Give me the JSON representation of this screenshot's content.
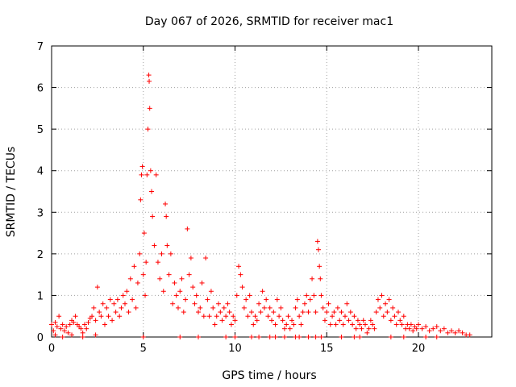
{
  "chart_data": {
    "type": "scatter",
    "title": "Day 067 of 2026, SRMTID for receiver mac1",
    "xlabel": "GPS time / hours",
    "ylabel": "SRMTID / TECUs",
    "xlim": [
      0,
      24
    ],
    "ylim": [
      0,
      7
    ],
    "x_ticks": [
      0,
      5,
      10,
      15,
      20
    ],
    "x_tick_labels": [
      "0",
      "5",
      "10",
      "15",
      "20"
    ],
    "y_ticks": [
      0,
      1,
      2,
      3,
      4,
      5,
      6,
      7
    ],
    "y_tick_labels": [
      "0",
      "1",
      "2",
      "3",
      "4",
      "5",
      "6",
      "7"
    ],
    "grid": true,
    "marker": "+",
    "color": "#ff0000",
    "series": [
      {
        "name": "SRMTID",
        "points": [
          [
            0.0,
            0.3
          ],
          [
            0.1,
            0.15
          ],
          [
            0.2,
            0.35
          ],
          [
            0.3,
            0.25
          ],
          [
            0.4,
            0.5
          ],
          [
            0.5,
            0.2
          ],
          [
            0.6,
            0.3
          ],
          [
            0.7,
            0.15
          ],
          [
            0.8,
            0.25
          ],
          [
            0.9,
            0.1
          ],
          [
            1.0,
            0.3
          ],
          [
            1.1,
            0.4
          ],
          [
            1.2,
            0.35
          ],
          [
            1.3,
            0.5
          ],
          [
            1.4,
            0.3
          ],
          [
            1.5,
            0.25
          ],
          [
            1.6,
            0.2
          ],
          [
            1.7,
            0.1
          ],
          [
            1.8,
            0.3
          ],
          [
            1.9,
            0.2
          ],
          [
            2.0,
            0.35
          ],
          [
            2.1,
            0.45
          ],
          [
            2.2,
            0.5
          ],
          [
            2.3,
            0.7
          ],
          [
            2.4,
            0.4
          ],
          [
            2.5,
            1.2
          ],
          [
            2.6,
            0.6
          ],
          [
            2.7,
            0.5
          ],
          [
            2.8,
            0.8
          ],
          [
            2.9,
            0.3
          ],
          [
            3.0,
            0.7
          ],
          [
            3.1,
            0.5
          ],
          [
            3.2,
            0.9
          ],
          [
            3.3,
            0.4
          ],
          [
            3.4,
            0.8
          ],
          [
            3.5,
            0.6
          ],
          [
            3.6,
            0.9
          ],
          [
            3.7,
            0.5
          ],
          [
            3.8,
            0.7
          ],
          [
            3.9,
            1.0
          ],
          [
            4.0,
            0.8
          ],
          [
            4.1,
            1.1
          ],
          [
            4.2,
            0.6
          ],
          [
            4.3,
            1.4
          ],
          [
            4.4,
            0.9
          ],
          [
            4.5,
            1.7
          ],
          [
            4.6,
            0.7
          ],
          [
            4.7,
            1.3
          ],
          [
            4.8,
            2.0
          ],
          [
            4.85,
            3.3
          ],
          [
            4.9,
            3.9
          ],
          [
            4.95,
            4.1
          ],
          [
            5.0,
            1.5
          ],
          [
            5.05,
            2.5
          ],
          [
            5.1,
            1.0
          ],
          [
            5.15,
            1.8
          ],
          [
            5.2,
            3.9
          ],
          [
            5.25,
            5.0
          ],
          [
            5.3,
            6.3
          ],
          [
            5.32,
            6.15
          ],
          [
            5.35,
            5.5
          ],
          [
            5.4,
            4.0
          ],
          [
            5.45,
            3.5
          ],
          [
            5.5,
            2.9
          ],
          [
            5.6,
            2.2
          ],
          [
            5.7,
            3.9
          ],
          [
            5.8,
            1.8
          ],
          [
            5.9,
            1.4
          ],
          [
            6.0,
            2.0
          ],
          [
            6.1,
            1.1
          ],
          [
            6.2,
            3.2
          ],
          [
            6.25,
            2.9
          ],
          [
            6.3,
            2.2
          ],
          [
            6.4,
            1.5
          ],
          [
            6.5,
            2.0
          ],
          [
            6.6,
            0.8
          ],
          [
            6.7,
            1.3
          ],
          [
            6.8,
            1.0
          ],
          [
            6.9,
            0.7
          ],
          [
            7.0,
            1.1
          ],
          [
            7.1,
            1.4
          ],
          [
            7.2,
            0.6
          ],
          [
            7.3,
            0.9
          ],
          [
            7.4,
            2.6
          ],
          [
            7.5,
            1.5
          ],
          [
            7.6,
            1.9
          ],
          [
            7.7,
            1.2
          ],
          [
            7.8,
            0.8
          ],
          [
            7.9,
            1.0
          ],
          [
            8.0,
            0.6
          ],
          [
            8.1,
            0.7
          ],
          [
            8.2,
            1.3
          ],
          [
            8.3,
            0.5
          ],
          [
            8.4,
            1.9
          ],
          [
            8.5,
            0.9
          ],
          [
            8.6,
            0.5
          ],
          [
            8.7,
            1.1
          ],
          [
            8.8,
            0.7
          ],
          [
            8.9,
            0.3
          ],
          [
            9.0,
            0.5
          ],
          [
            9.1,
            0.8
          ],
          [
            9.2,
            0.6
          ],
          [
            9.3,
            0.4
          ],
          [
            9.4,
            0.7
          ],
          [
            9.5,
            0.5
          ],
          [
            9.6,
            0.8
          ],
          [
            9.7,
            0.6
          ],
          [
            9.8,
            0.3
          ],
          [
            9.9,
            0.5
          ],
          [
            10.0,
            0.4
          ],
          [
            10.1,
            1.0
          ],
          [
            10.2,
            1.7
          ],
          [
            10.3,
            1.5
          ],
          [
            10.4,
            1.2
          ],
          [
            10.5,
            0.7
          ],
          [
            10.6,
            0.9
          ],
          [
            10.7,
            0.5
          ],
          [
            10.8,
            1.0
          ],
          [
            10.9,
            0.6
          ],
          [
            11.0,
            0.3
          ],
          [
            11.1,
            0.5
          ],
          [
            11.2,
            0.4
          ],
          [
            11.3,
            0.8
          ],
          [
            11.4,
            0.6
          ],
          [
            11.5,
            1.1
          ],
          [
            11.6,
            0.7
          ],
          [
            11.7,
            0.9
          ],
          [
            11.8,
            0.5
          ],
          [
            11.9,
            0.7
          ],
          [
            12.0,
            0.4
          ],
          [
            12.1,
            0.6
          ],
          [
            12.2,
            0.3
          ],
          [
            12.3,
            0.9
          ],
          [
            12.4,
            0.5
          ],
          [
            12.5,
            0.7
          ],
          [
            12.6,
            0.4
          ],
          [
            12.7,
            0.2
          ],
          [
            12.8,
            0.3
          ],
          [
            12.9,
            0.5
          ],
          [
            13.0,
            0.2
          ],
          [
            13.1,
            0.4
          ],
          [
            13.2,
            0.3
          ],
          [
            13.3,
            0.7
          ],
          [
            13.4,
            0.9
          ],
          [
            13.5,
            0.5
          ],
          [
            13.6,
            0.3
          ],
          [
            13.7,
            0.6
          ],
          [
            13.8,
            0.8
          ],
          [
            13.9,
            1.0
          ],
          [
            14.0,
            0.6
          ],
          [
            14.1,
            0.9
          ],
          [
            14.2,
            1.4
          ],
          [
            14.3,
            1.0
          ],
          [
            14.4,
            0.6
          ],
          [
            14.5,
            2.3
          ],
          [
            14.55,
            2.1
          ],
          [
            14.6,
            1.7
          ],
          [
            14.65,
            1.4
          ],
          [
            14.7,
            1.0
          ],
          [
            14.8,
            0.7
          ],
          [
            14.9,
            0.4
          ],
          [
            15.0,
            0.6
          ],
          [
            15.1,
            0.8
          ],
          [
            15.2,
            0.3
          ],
          [
            15.3,
            0.5
          ],
          [
            15.4,
            0.6
          ],
          [
            15.5,
            0.3
          ],
          [
            15.6,
            0.7
          ],
          [
            15.7,
            0.4
          ],
          [
            15.8,
            0.6
          ],
          [
            15.9,
            0.3
          ],
          [
            16.0,
            0.5
          ],
          [
            16.1,
            0.8
          ],
          [
            16.2,
            0.4
          ],
          [
            16.3,
            0.6
          ],
          [
            16.4,
            0.3
          ],
          [
            16.5,
            0.5
          ],
          [
            16.6,
            0.2
          ],
          [
            16.7,
            0.4
          ],
          [
            16.8,
            0.3
          ],
          [
            16.9,
            0.2
          ],
          [
            17.0,
            0.4
          ],
          [
            17.1,
            0.3
          ],
          [
            17.2,
            0.1
          ],
          [
            17.3,
            0.2
          ],
          [
            17.4,
            0.4
          ],
          [
            17.5,
            0.3
          ],
          [
            17.6,
            0.2
          ],
          [
            17.7,
            0.6
          ],
          [
            17.8,
            0.9
          ],
          [
            17.9,
            0.7
          ],
          [
            18.0,
            1.0
          ],
          [
            18.1,
            0.5
          ],
          [
            18.2,
            0.8
          ],
          [
            18.3,
            0.6
          ],
          [
            18.4,
            0.9
          ],
          [
            18.5,
            0.4
          ],
          [
            18.6,
            0.7
          ],
          [
            18.7,
            0.5
          ],
          [
            18.8,
            0.3
          ],
          [
            18.9,
            0.6
          ],
          [
            19.0,
            0.4
          ],
          [
            19.1,
            0.3
          ],
          [
            19.2,
            0.5
          ],
          [
            19.3,
            0.2
          ],
          [
            19.4,
            0.3
          ],
          [
            19.5,
            0.2
          ],
          [
            19.6,
            0.3
          ],
          [
            19.7,
            0.15
          ],
          [
            19.8,
            0.25
          ],
          [
            19.9,
            0.2
          ],
          [
            20.0,
            0.3
          ],
          [
            20.2,
            0.2
          ],
          [
            20.4,
            0.25
          ],
          [
            20.6,
            0.15
          ],
          [
            20.8,
            0.2
          ],
          [
            21.0,
            0.25
          ],
          [
            21.2,
            0.15
          ],
          [
            21.4,
            0.2
          ],
          [
            21.6,
            0.1
          ],
          [
            21.8,
            0.15
          ],
          [
            22.0,
            0.1
          ],
          [
            22.2,
            0.15
          ],
          [
            22.4,
            0.1
          ],
          [
            22.6,
            0.05
          ],
          [
            22.8,
            0.05
          ],
          [
            0.2,
            0.05
          ],
          [
            0.6,
            0.0
          ],
          [
            1.1,
            0.05
          ],
          [
            1.7,
            0.0
          ],
          [
            2.4,
            0.05
          ],
          [
            5.0,
            0.0
          ],
          [
            7.0,
            0.0
          ],
          [
            8.0,
            0.0
          ],
          [
            9.5,
            0.0
          ],
          [
            10.0,
            0.0
          ],
          [
            10.9,
            0.0
          ],
          [
            11.3,
            0.0
          ],
          [
            11.9,
            0.0
          ],
          [
            12.2,
            0.0
          ],
          [
            12.7,
            0.0
          ],
          [
            13.3,
            0.0
          ],
          [
            13.5,
            0.0
          ],
          [
            14.0,
            0.0
          ],
          [
            14.4,
            0.0
          ],
          [
            14.7,
            0.0
          ],
          [
            15.8,
            0.0
          ],
          [
            16.5,
            0.0
          ],
          [
            16.8,
            0.0
          ],
          [
            18.5,
            0.0
          ],
          [
            19.2,
            0.0
          ],
          [
            20.4,
            0.0
          ],
          [
            21.0,
            0.0
          ]
        ]
      }
    ]
  }
}
